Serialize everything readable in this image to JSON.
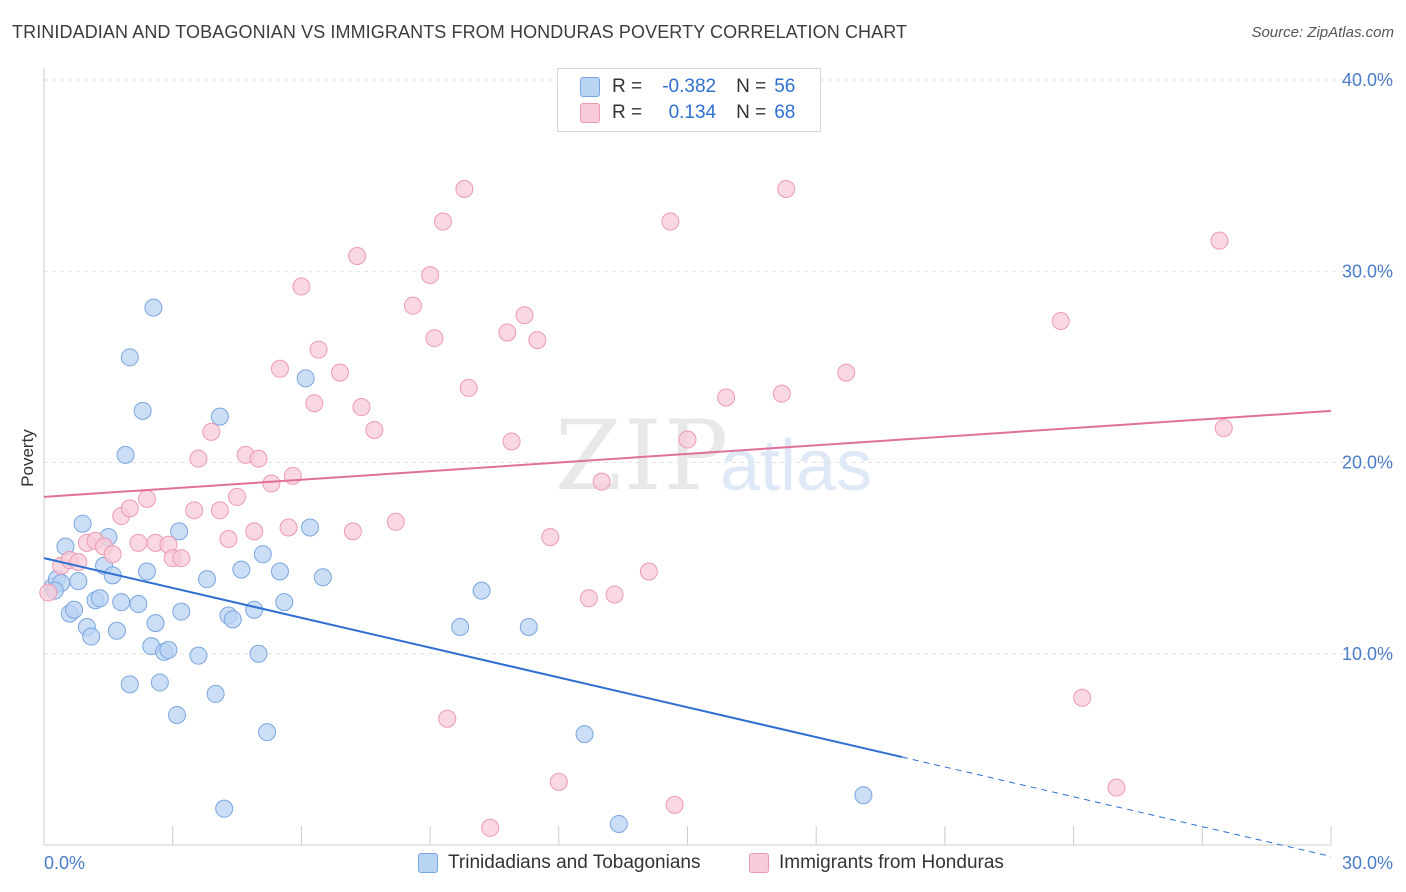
{
  "title": "TRINIDADIAN AND TOBAGONIAN VS IMMIGRANTS FROM HONDURAS POVERTY CORRELATION CHART",
  "source": "Source: ZipAtlas.com",
  "watermark": {
    "zip": "ZIP",
    "atlas": "atlas"
  },
  "legend": {
    "rows": [
      {
        "r_label": "R =",
        "r_value": "-0.382",
        "n_label": "N =",
        "n_value": "56",
        "color": "#7aa6df"
      },
      {
        "r_label": "R =",
        "r_value": "0.134",
        "n_label": "N =",
        "n_value": "68",
        "color": "#ec9ab2"
      }
    ]
  },
  "bottom_legend": [
    {
      "label": "Trinidadians and Tobagonians",
      "color": "#7aa6df"
    },
    {
      "label": "Immigrants from Honduras",
      "color": "#ec9ab2"
    }
  ],
  "chart_data": {
    "type": "scatter",
    "xlabel": "",
    "ylabel": "Poverty",
    "xlim": [
      0,
      30
    ],
    "ylim": [
      0,
      40
    ],
    "x_tick_labels": [
      "0.0%",
      "30.0%"
    ],
    "y_tick_labels": [
      "10.0%",
      "20.0%",
      "30.0%",
      "40.0%"
    ],
    "y_ticks": [
      10,
      20,
      30,
      40
    ],
    "grid": true,
    "legend_placement": "top-center",
    "series": [
      {
        "name": "Trinidadians and Tobagonians",
        "color": "#7aa6df",
        "fill": "#b9d3f3",
        "trend": {
          "x0": 0,
          "y0": 15.0,
          "x1": 20.0,
          "y1": 4.6,
          "dash_to_x": 30,
          "dash_to_y": -0.6
        },
        "points": [
          [
            0.2,
            13.5
          ],
          [
            0.3,
            13.9
          ],
          [
            0.4,
            13.7
          ],
          [
            0.5,
            15.6
          ],
          [
            0.6,
            12.1
          ],
          [
            0.7,
            12.3
          ],
          [
            0.8,
            13.8
          ],
          [
            0.9,
            16.8
          ],
          [
            1.0,
            11.4
          ],
          [
            1.1,
            10.9
          ],
          [
            1.2,
            12.8
          ],
          [
            1.3,
            12.9
          ],
          [
            1.4,
            14.6
          ],
          [
            1.5,
            16.1
          ],
          [
            1.6,
            14.1
          ],
          [
            1.7,
            11.2
          ],
          [
            1.8,
            12.7
          ],
          [
            1.9,
            20.4
          ],
          [
            2.0,
            8.4
          ],
          [
            2.0,
            25.5
          ],
          [
            2.2,
            12.6
          ],
          [
            2.3,
            22.7
          ],
          [
            2.4,
            14.3
          ],
          [
            2.5,
            10.4
          ],
          [
            2.55,
            28.1
          ],
          [
            2.6,
            11.6
          ],
          [
            2.7,
            8.5
          ],
          [
            2.8,
            10.1
          ],
          [
            2.9,
            10.2
          ],
          [
            3.1,
            6.8
          ],
          [
            3.15,
            16.4
          ],
          [
            3.2,
            12.2
          ],
          [
            3.6,
            9.9
          ],
          [
            3.8,
            13.9
          ],
          [
            4.0,
            7.9
          ],
          [
            4.1,
            22.4
          ],
          [
            4.2,
            1.9
          ],
          [
            4.3,
            12.0
          ],
          [
            4.4,
            11.8
          ],
          [
            4.6,
            14.4
          ],
          [
            4.9,
            12.3
          ],
          [
            5.0,
            10.0
          ],
          [
            5.1,
            15.2
          ],
          [
            5.2,
            5.9
          ],
          [
            5.5,
            14.3
          ],
          [
            5.6,
            12.7
          ],
          [
            6.1,
            24.4
          ],
          [
            6.2,
            16.6
          ],
          [
            6.5,
            14.0
          ],
          [
            9.7,
            11.4
          ],
          [
            10.2,
            13.3
          ],
          [
            11.3,
            11.4
          ],
          [
            12.6,
            5.8
          ],
          [
            13.4,
            1.1
          ],
          [
            19.1,
            2.6
          ],
          [
            0.25,
            13.3
          ]
        ]
      },
      {
        "name": "Immigrants from Honduras",
        "color": "#ec9ab2",
        "fill": "#f8cbd8",
        "trend": {
          "x0": 0,
          "y0": 18.2,
          "x1": 30,
          "y1": 22.7
        },
        "points": [
          [
            0.1,
            13.2
          ],
          [
            0.4,
            14.6
          ],
          [
            0.6,
            14.9
          ],
          [
            0.8,
            14.8
          ],
          [
            1.0,
            15.8
          ],
          [
            1.2,
            15.9
          ],
          [
            1.4,
            15.6
          ],
          [
            1.6,
            15.2
          ],
          [
            1.8,
            17.2
          ],
          [
            2.0,
            17.6
          ],
          [
            2.2,
            15.8
          ],
          [
            2.4,
            18.1
          ],
          [
            2.6,
            15.8
          ],
          [
            2.9,
            15.7
          ],
          [
            3.0,
            15.0
          ],
          [
            3.2,
            15.0
          ],
          [
            3.5,
            17.5
          ],
          [
            3.6,
            20.2
          ],
          [
            3.9,
            21.6
          ],
          [
            4.1,
            17.5
          ],
          [
            4.3,
            16.0
          ],
          [
            4.5,
            18.2
          ],
          [
            4.7,
            20.4
          ],
          [
            4.9,
            16.4
          ],
          [
            5.0,
            20.2
          ],
          [
            5.3,
            18.9
          ],
          [
            5.5,
            24.9
          ],
          [
            5.7,
            16.6
          ],
          [
            5.8,
            19.3
          ],
          [
            6.0,
            29.2
          ],
          [
            6.3,
            23.1
          ],
          [
            6.4,
            25.9
          ],
          [
            6.9,
            24.7
          ],
          [
            7.2,
            16.4
          ],
          [
            7.4,
            22.9
          ],
          [
            7.7,
            21.7
          ],
          [
            8.2,
            16.9
          ],
          [
            8.6,
            28.2
          ],
          [
            9.0,
            29.8
          ],
          [
            9.1,
            26.5
          ],
          [
            9.3,
            32.6
          ],
          [
            9.4,
            6.6
          ],
          [
            9.8,
            34.3
          ],
          [
            9.9,
            23.9
          ],
          [
            10.4,
            0.9
          ],
          [
            10.8,
            26.8
          ],
          [
            10.9,
            21.1
          ],
          [
            11.2,
            27.7
          ],
          [
            11.5,
            26.4
          ],
          [
            11.8,
            16.1
          ],
          [
            12.0,
            3.3
          ],
          [
            12.7,
            12.9
          ],
          [
            13.0,
            19.0
          ],
          [
            13.3,
            13.1
          ],
          [
            14.1,
            14.3
          ],
          [
            14.6,
            32.6
          ],
          [
            14.7,
            2.1
          ],
          [
            15.0,
            21.2
          ],
          [
            15.9,
            23.4
          ],
          [
            17.2,
            23.6
          ],
          [
            17.3,
            34.3
          ],
          [
            18.7,
            24.7
          ],
          [
            23.7,
            27.4
          ],
          [
            24.2,
            7.7
          ],
          [
            25.0,
            3.0
          ],
          [
            27.4,
            31.6
          ],
          [
            27.5,
            21.8
          ],
          [
            7.3,
            30.8
          ]
        ]
      }
    ]
  }
}
